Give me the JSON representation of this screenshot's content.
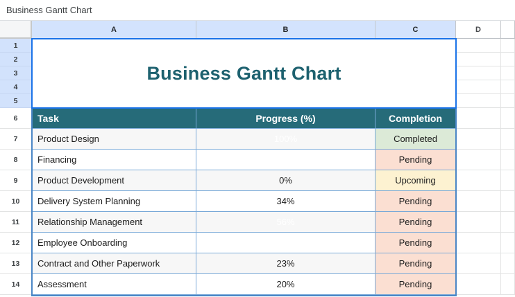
{
  "topbar": {
    "title": "Business Gantt Chart"
  },
  "sheet": {
    "column_headers": [
      "A",
      "B",
      "C",
      "D"
    ],
    "row_numbers": [
      "1",
      "2",
      "3",
      "4",
      "5",
      "6",
      "7",
      "8",
      "9",
      "10",
      "11",
      "12",
      "13",
      "14"
    ],
    "title_cell": "Business Gantt Chart",
    "table": {
      "headers": [
        "Task",
        "Progress (%)",
        "Completion"
      ],
      "rows": [
        {
          "task": "Product Design",
          "progress": "100%",
          "status": "Completed"
        },
        {
          "task": "Financing",
          "progress": "",
          "status": "Pending"
        },
        {
          "task": "Product Development",
          "progress": "0%",
          "status": "Upcoming"
        },
        {
          "task": "Delivery System Planning",
          "progress": "34%",
          "status": "Pending"
        },
        {
          "task": "Relationship Management",
          "progress": "56%",
          "status": "Pending"
        },
        {
          "task": "Employee Onboarding",
          "progress": "",
          "status": "Pending"
        },
        {
          "task": "Contract and Other Paperwork",
          "progress": "23%",
          "status": "Pending"
        },
        {
          "task": "Assessment",
          "progress": "20%",
          "status": "Pending"
        }
      ]
    },
    "colors": {
      "header_teal": "#266b79",
      "title_text": "#1d616f",
      "completed_bg": "#dcead7",
      "pending_bg": "#fbdfd2",
      "upcoming_bg": "#fdf2d1",
      "selection_border": "#1a73e8",
      "table_border": "#4a86c6",
      "selected_header_bg": "#d3e3fd"
    }
  }
}
